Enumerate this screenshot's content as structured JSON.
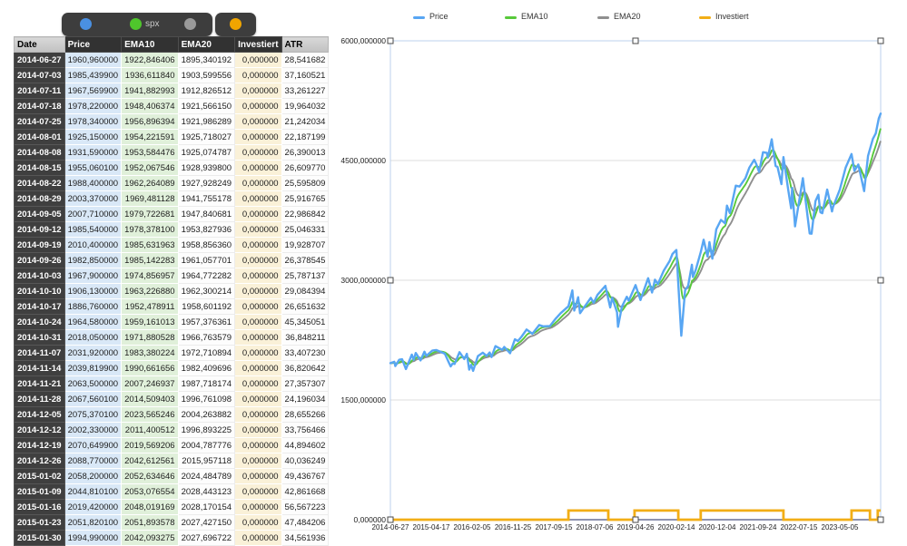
{
  "table": {
    "series_picker": {
      "main_dots": [
        {
          "name": "price-dot",
          "color": "#4a90e2",
          "label": ""
        },
        {
          "name": "spx-dot",
          "color": "#4fc62c",
          "label": "spx"
        },
        {
          "name": "ema20-dot",
          "color": "#9a9a9a",
          "label": ""
        }
      ],
      "invest_dot": {
        "name": "investiert-dot",
        "color": "#f0a500"
      }
    },
    "columns": [
      "Date",
      "Price",
      "EMA10",
      "EMA20",
      "Investiert",
      "ATR"
    ],
    "rows": [
      [
        "2014-06-27",
        "1960,960000",
        "1922,846406",
        "1895,340192",
        "0,000000",
        "28,541682"
      ],
      [
        "2014-07-03",
        "1985,439900",
        "1936,611840",
        "1903,599556",
        "0,000000",
        "37,160521"
      ],
      [
        "2014-07-11",
        "1967,569900",
        "1941,882993",
        "1912,826512",
        "0,000000",
        "33,261227"
      ],
      [
        "2014-07-18",
        "1978,220000",
        "1948,406374",
        "1921,566150",
        "0,000000",
        "19,964032"
      ],
      [
        "2014-07-25",
        "1978,340000",
        "1956,896394",
        "1921,986289",
        "0,000000",
        "21,242034"
      ],
      [
        "2014-08-01",
        "1925,150000",
        "1954,221591",
        "1925,718027",
        "0,000000",
        "22,187199"
      ],
      [
        "2014-08-08",
        "1931,590000",
        "1953,584476",
        "1925,074787",
        "0,000000",
        "26,390013"
      ],
      [
        "2014-08-15",
        "1955,060100",
        "1952,067546",
        "1928,939800",
        "0,000000",
        "26,609770"
      ],
      [
        "2014-08-22",
        "1988,400000",
        "1962,264089",
        "1927,928249",
        "0,000000",
        "25,595809"
      ],
      [
        "2014-08-29",
        "2003,370000",
        "1969,481128",
        "1941,755178",
        "0,000000",
        "25,916765"
      ],
      [
        "2014-09-05",
        "2007,710000",
        "1979,722681",
        "1947,840681",
        "0,000000",
        "22,986842"
      ],
      [
        "2014-09-12",
        "1985,540000",
        "1978,378100",
        "1953,827936",
        "0,000000",
        "25,046331"
      ],
      [
        "2014-09-19",
        "2010,400000",
        "1985,631963",
        "1958,856360",
        "0,000000",
        "19,928707"
      ],
      [
        "2014-09-26",
        "1982,850000",
        "1985,142283",
        "1961,057701",
        "0,000000",
        "26,378545"
      ],
      [
        "2014-10-03",
        "1967,900000",
        "1974,856957",
        "1964,772282",
        "0,000000",
        "25,787137"
      ],
      [
        "2014-10-10",
        "1906,130000",
        "1963,226880",
        "1962,300214",
        "0,000000",
        "29,084394"
      ],
      [
        "2014-10-17",
        "1886,760000",
        "1952,478911",
        "1958,601192",
        "0,000000",
        "26,651632"
      ],
      [
        "2014-10-24",
        "1964,580000",
        "1959,161013",
        "1957,376361",
        "0,000000",
        "45,345051"
      ],
      [
        "2014-10-31",
        "2018,050000",
        "1971,880528",
        "1966,763579",
        "0,000000",
        "36,848211"
      ],
      [
        "2014-11-07",
        "2031,920000",
        "1983,380224",
        "1972,710894",
        "0,000000",
        "33,407230"
      ],
      [
        "2014-11-14",
        "2039,819900",
        "1990,661656",
        "1982,409696",
        "0,000000",
        "36,820642"
      ],
      [
        "2014-11-21",
        "2063,500000",
        "2007,246937",
        "1987,718174",
        "0,000000",
        "27,357307"
      ],
      [
        "2014-11-28",
        "2067,560100",
        "2014,509403",
        "1996,761098",
        "0,000000",
        "24,196034"
      ],
      [
        "2014-12-05",
        "2075,370100",
        "2023,565246",
        "2004,263882",
        "0,000000",
        "28,655266"
      ],
      [
        "2014-12-12",
        "2002,330000",
        "2011,400512",
        "1996,893225",
        "0,000000",
        "33,756466"
      ],
      [
        "2014-12-19",
        "2070,649900",
        "2019,569206",
        "2004,787776",
        "0,000000",
        "44,894602"
      ],
      [
        "2014-12-26",
        "2088,770000",
        "2042,612561",
        "2015,957118",
        "0,000000",
        "40,036249"
      ],
      [
        "2015-01-02",
        "2058,200000",
        "2052,634646",
        "2024,484789",
        "0,000000",
        "49,436767"
      ],
      [
        "2015-01-09",
        "2044,810100",
        "2053,076554",
        "2028,443123",
        "0,000000",
        "42,861668"
      ],
      [
        "2015-01-16",
        "2019,420000",
        "2048,019169",
        "2028,170154",
        "0,000000",
        "56,567223"
      ],
      [
        "2015-01-23",
        "2051,820100",
        "2051,893578",
        "2027,427150",
        "0,000000",
        "47,484206"
      ],
      [
        "2015-01-30",
        "1994,990000",
        "2042,093275",
        "2027,696722",
        "0,000000",
        "34,561936"
      ]
    ]
  },
  "chart_data": {
    "type": "line",
    "x_range": [
      "2014-06-27",
      "2024-02-23"
    ],
    "ylim": [
      0,
      6000
    ],
    "grid": true,
    "legend_position": "top",
    "y_ticks": [
      "6000,000000",
      "4500,000000",
      "3000,000000",
      "1500,000000",
      "0,000000"
    ],
    "x_ticks": [
      "2014-06-27",
      "2015-04-17",
      "2016-02-05",
      "2016-11-25",
      "2017-09-15",
      "2018-07-06",
      "2019-04-26",
      "2020-02-14",
      "2020-12-04",
      "2021-09-24",
      "2022-07-15",
      "2023-05-05"
    ],
    "legend": [
      {
        "label": "Price",
        "color": "#58a6f3"
      },
      {
        "label": "EMA10",
        "color": "#58c93b"
      },
      {
        "label": "EMA20",
        "color": "#8f8f8f"
      },
      {
        "label": "Investiert",
        "color": "#f2ae16"
      }
    ],
    "series": [
      {
        "name": "Price",
        "color": "#58a6f3",
        "points": [
          [
            "2014-06-27",
            1961
          ],
          [
            "2014-07-25",
            1978
          ],
          [
            "2014-08-01",
            1925
          ],
          [
            "2014-08-29",
            2003
          ],
          [
            "2014-09-19",
            2010
          ],
          [
            "2014-10-17",
            1887
          ],
          [
            "2014-11-28",
            2068
          ],
          [
            "2014-12-12",
            2002
          ],
          [
            "2014-12-26",
            2089
          ],
          [
            "2015-01-30",
            1995
          ],
          [
            "2015-02-27",
            2105
          ],
          [
            "2015-03-13",
            2053
          ],
          [
            "2015-04-24",
            2118
          ],
          [
            "2015-05-22",
            2126
          ],
          [
            "2015-06-26",
            2101
          ],
          [
            "2015-07-24",
            2080
          ],
          [
            "2015-08-21",
            1971
          ],
          [
            "2015-09-04",
            1921
          ],
          [
            "2015-09-18",
            1958
          ],
          [
            "2015-10-02",
            1951
          ],
          [
            "2015-11-06",
            2099
          ],
          [
            "2015-12-11",
            2012
          ],
          [
            "2015-12-29",
            2078
          ],
          [
            "2016-01-15",
            1880
          ],
          [
            "2016-01-29",
            1940
          ],
          [
            "2016-02-12",
            1865
          ],
          [
            "2016-03-18",
            2050
          ],
          [
            "2016-04-22",
            2092
          ],
          [
            "2016-05-20",
            2052
          ],
          [
            "2016-06-10",
            2096
          ],
          [
            "2016-06-24",
            2037
          ],
          [
            "2016-07-22",
            2175
          ],
          [
            "2016-09-09",
            2128
          ],
          [
            "2016-09-23",
            2165
          ],
          [
            "2016-11-04",
            2085
          ],
          [
            "2016-12-09",
            2260
          ],
          [
            "2016-12-30",
            2239
          ],
          [
            "2017-01-27",
            2295
          ],
          [
            "2017-03-03",
            2383
          ],
          [
            "2017-04-14",
            2329
          ],
          [
            "2017-06-02",
            2439
          ],
          [
            "2017-06-30",
            2423
          ],
          [
            "2017-08-18",
            2426
          ],
          [
            "2017-09-29",
            2519
          ],
          [
            "2017-11-03",
            2588
          ],
          [
            "2017-12-29",
            2674
          ],
          [
            "2018-01-26",
            2873
          ],
          [
            "2018-02-09",
            2620
          ],
          [
            "2018-03-09",
            2787
          ],
          [
            "2018-03-23",
            2588
          ],
          [
            "2018-06-08",
            2779
          ],
          [
            "2018-06-29",
            2718
          ],
          [
            "2018-07-27",
            2819
          ],
          [
            "2018-09-21",
            2930
          ],
          [
            "2018-10-26",
            2659
          ],
          [
            "2018-11-09",
            2781
          ],
          [
            "2018-12-14",
            2600
          ],
          [
            "2018-12-21",
            2417
          ],
          [
            "2019-01-18",
            2671
          ],
          [
            "2019-02-22",
            2793
          ],
          [
            "2019-03-08",
            2743
          ],
          [
            "2019-04-26",
            2940
          ],
          [
            "2019-05-31",
            2752
          ],
          [
            "2019-07-26",
            3026
          ],
          [
            "2019-08-23",
            2847
          ],
          [
            "2019-09-13",
            3007
          ],
          [
            "2019-10-04",
            2952
          ],
          [
            "2019-11-15",
            3120
          ],
          [
            "2019-12-27",
            3240
          ],
          [
            "2020-01-17",
            3330
          ],
          [
            "2020-02-14",
            3380
          ],
          [
            "2020-02-28",
            2954
          ],
          [
            "2020-03-20",
            2305
          ],
          [
            "2020-04-17",
            2875
          ],
          [
            "2020-05-08",
            2930
          ],
          [
            "2020-06-05",
            3194
          ],
          [
            "2020-06-12",
            3041
          ],
          [
            "2020-07-02",
            3130
          ],
          [
            "2020-08-07",
            3351
          ],
          [
            "2020-08-28",
            3508
          ],
          [
            "2020-09-25",
            3298
          ],
          [
            "2020-10-09",
            3477
          ],
          [
            "2020-10-30",
            3270
          ],
          [
            "2020-11-27",
            3638
          ],
          [
            "2020-12-31",
            3756
          ],
          [
            "2021-01-29",
            3714
          ],
          [
            "2021-02-12",
            3935
          ],
          [
            "2021-03-05",
            3842
          ],
          [
            "2021-04-16",
            4185
          ],
          [
            "2021-05-14",
            4174
          ],
          [
            "2021-06-25",
            4281
          ],
          [
            "2021-07-23",
            4412
          ],
          [
            "2021-08-27",
            4509
          ],
          [
            "2021-09-10",
            4459
          ],
          [
            "2021-10-01",
            4357
          ],
          [
            "2021-10-29",
            4605
          ],
          [
            "2021-11-26",
            4595
          ],
          [
            "2021-12-03",
            4538
          ],
          [
            "2021-12-31",
            4766
          ],
          [
            "2022-01-07",
            4677
          ],
          [
            "2022-01-28",
            4432
          ],
          [
            "2022-02-11",
            4419
          ],
          [
            "2022-03-11",
            4204
          ],
          [
            "2022-03-25",
            4543
          ],
          [
            "2022-04-29",
            4132
          ],
          [
            "2022-05-20",
            3901
          ],
          [
            "2022-05-27",
            4158
          ],
          [
            "2022-06-17",
            3675
          ],
          [
            "2022-08-12",
            4280
          ],
          [
            "2022-09-30",
            3586
          ],
          [
            "2022-10-14",
            3583
          ],
          [
            "2022-11-11",
            3993
          ],
          [
            "2022-12-02",
            4072
          ],
          [
            "2022-12-16",
            3852
          ],
          [
            "2022-12-30",
            3840
          ],
          [
            "2023-02-03",
            4136
          ],
          [
            "2023-03-10",
            3862
          ],
          [
            "2023-03-17",
            3917
          ],
          [
            "2023-05-05",
            4136
          ],
          [
            "2023-06-16",
            4410
          ],
          [
            "2023-07-28",
            4582
          ],
          [
            "2023-08-18",
            4370
          ],
          [
            "2023-09-15",
            4450
          ],
          [
            "2023-10-27",
            4117
          ],
          [
            "2023-11-24",
            4559
          ],
          [
            "2023-12-29",
            4770
          ],
          [
            "2024-01-19",
            4840
          ],
          [
            "2024-02-09",
            5027
          ],
          [
            "2024-02-23",
            5089
          ]
        ]
      }
    ],
    "ema10": {
      "window_weeks": 10,
      "color": "#58c93b"
    },
    "ema20": {
      "window_weeks": 20,
      "color": "#8f8f8f"
    },
    "invested": {
      "color": "#f2ae16",
      "high_value": 115,
      "segments": [
        [
          "2017-12-29",
          "2018-10-12"
        ],
        [
          "2019-04-19",
          "2020-02-28"
        ],
        [
          "2020-08-07",
          "2022-03-25"
        ],
        [
          "2023-07-28",
          "2023-12-08"
        ],
        [
          "2024-02-02",
          "2024-02-23"
        ]
      ]
    }
  }
}
